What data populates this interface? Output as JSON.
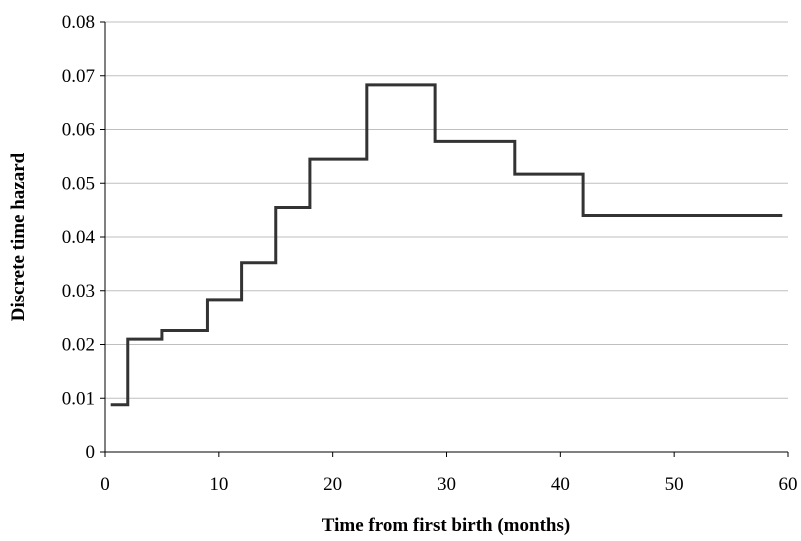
{
  "chart_data": {
    "type": "line",
    "step": true,
    "title": "",
    "xlabel": "Time from first birth (months)",
    "ylabel": "Discrete time hazard",
    "xlim": [
      0,
      60
    ],
    "ylim": [
      0,
      0.08
    ],
    "xticks": [
      0,
      10,
      20,
      30,
      40,
      50,
      60
    ],
    "xtick_labels": [
      "0",
      "10",
      "20",
      "30",
      "40",
      "50",
      "60"
    ],
    "yticks": [
      0,
      0.01,
      0.02,
      0.03,
      0.04,
      0.05,
      0.06,
      0.07,
      0.08
    ],
    "ytick_labels": [
      "0",
      "0.01",
      "0.02",
      "0.03",
      "0.04",
      "0.05",
      "0.06",
      "0.07",
      "0.08"
    ],
    "grid": "horizontal",
    "legend": "none",
    "line_color": "#333333",
    "grid_color": "#bfbfbf",
    "series": [
      {
        "x": [
          0.5,
          2,
          5,
          9,
          12,
          15,
          18,
          23,
          29,
          36,
          42,
          59.5
        ],
        "y": [
          0.0088,
          0.021,
          0.0226,
          0.0283,
          0.0352,
          0.0455,
          0.0545,
          0.0683,
          0.0578,
          0.0517,
          0.044,
          0.044
        ]
      }
    ]
  }
}
